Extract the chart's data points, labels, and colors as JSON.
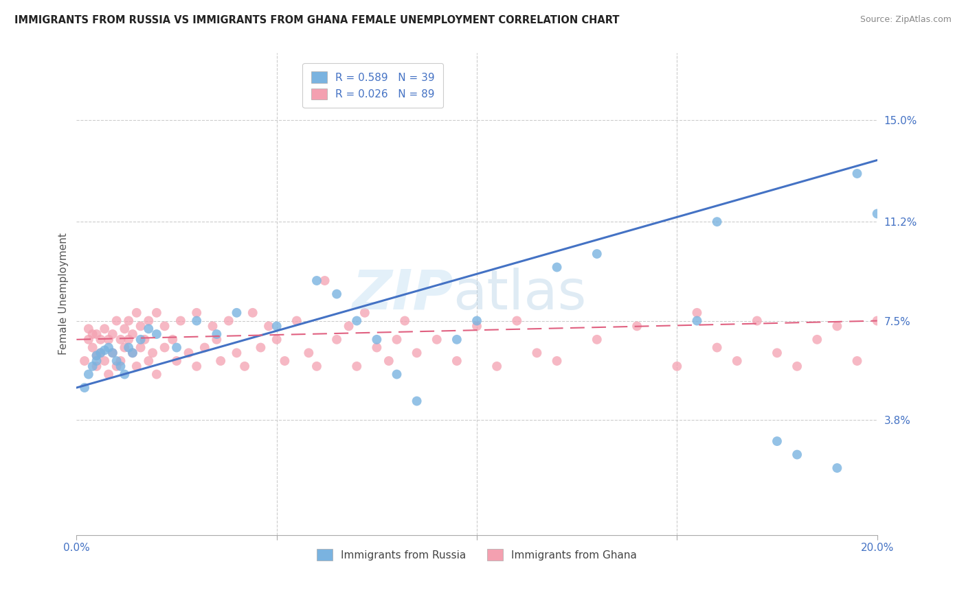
{
  "title": "IMMIGRANTS FROM RUSSIA VS IMMIGRANTS FROM GHANA FEMALE UNEMPLOYMENT CORRELATION CHART",
  "source": "Source: ZipAtlas.com",
  "ylabel": "Female Unemployment",
  "ytick_labels": [
    "15.0%",
    "11.2%",
    "7.5%",
    "3.8%"
  ],
  "ytick_values": [
    0.15,
    0.112,
    0.075,
    0.038
  ],
  "xlim": [
    0.0,
    0.2
  ],
  "ylim": [
    -0.005,
    0.175
  ],
  "legend_r1": "R = 0.589",
  "legend_n1": "N = 39",
  "legend_r2": "R = 0.026",
  "legend_n2": "N = 89",
  "color_russia": "#7ab3e0",
  "color_ghana": "#f4a0b0",
  "color_russia_line": "#4472c4",
  "color_ghana_line": "#e06080",
  "russia_x": [
    0.002,
    0.003,
    0.004,
    0.005,
    0.005,
    0.006,
    0.007,
    0.008,
    0.009,
    0.01,
    0.011,
    0.012,
    0.013,
    0.014,
    0.016,
    0.018,
    0.02,
    0.025,
    0.03,
    0.035,
    0.04,
    0.05,
    0.06,
    0.065,
    0.07,
    0.075,
    0.08,
    0.085,
    0.095,
    0.1,
    0.12,
    0.13,
    0.155,
    0.16,
    0.175,
    0.18,
    0.19,
    0.195,
    0.2
  ],
  "russia_y": [
    0.05,
    0.055,
    0.058,
    0.06,
    0.062,
    0.063,
    0.064,
    0.065,
    0.063,
    0.06,
    0.058,
    0.055,
    0.065,
    0.063,
    0.068,
    0.072,
    0.07,
    0.065,
    0.075,
    0.07,
    0.078,
    0.073,
    0.09,
    0.085,
    0.075,
    0.068,
    0.055,
    0.045,
    0.068,
    0.075,
    0.095,
    0.1,
    0.075,
    0.112,
    0.03,
    0.025,
    0.02,
    0.13,
    0.115
  ],
  "ghana_x": [
    0.002,
    0.003,
    0.003,
    0.004,
    0.004,
    0.005,
    0.005,
    0.005,
    0.006,
    0.006,
    0.007,
    0.007,
    0.008,
    0.008,
    0.009,
    0.009,
    0.01,
    0.01,
    0.011,
    0.011,
    0.012,
    0.012,
    0.013,
    0.013,
    0.014,
    0.014,
    0.015,
    0.015,
    0.016,
    0.016,
    0.017,
    0.018,
    0.018,
    0.019,
    0.02,
    0.02,
    0.022,
    0.022,
    0.024,
    0.025,
    0.026,
    0.028,
    0.03,
    0.03,
    0.032,
    0.034,
    0.035,
    0.036,
    0.038,
    0.04,
    0.042,
    0.044,
    0.046,
    0.048,
    0.05,
    0.052,
    0.055,
    0.058,
    0.06,
    0.062,
    0.065,
    0.068,
    0.07,
    0.072,
    0.075,
    0.078,
    0.08,
    0.082,
    0.085,
    0.09,
    0.095,
    0.1,
    0.105,
    0.11,
    0.115,
    0.12,
    0.13,
    0.14,
    0.15,
    0.155,
    0.16,
    0.165,
    0.17,
    0.175,
    0.18,
    0.185,
    0.19,
    0.195,
    0.2
  ],
  "ghana_y": [
    0.06,
    0.068,
    0.072,
    0.065,
    0.07,
    0.058,
    0.062,
    0.07,
    0.063,
    0.068,
    0.06,
    0.072,
    0.055,
    0.068,
    0.063,
    0.07,
    0.058,
    0.075,
    0.06,
    0.068,
    0.072,
    0.065,
    0.068,
    0.075,
    0.063,
    0.07,
    0.058,
    0.078,
    0.065,
    0.073,
    0.068,
    0.06,
    0.075,
    0.063,
    0.055,
    0.078,
    0.065,
    0.073,
    0.068,
    0.06,
    0.075,
    0.063,
    0.058,
    0.078,
    0.065,
    0.073,
    0.068,
    0.06,
    0.075,
    0.063,
    0.058,
    0.078,
    0.065,
    0.073,
    0.068,
    0.06,
    0.075,
    0.063,
    0.058,
    0.09,
    0.068,
    0.073,
    0.058,
    0.078,
    0.065,
    0.06,
    0.068,
    0.075,
    0.063,
    0.068,
    0.06,
    0.073,
    0.058,
    0.075,
    0.063,
    0.06,
    0.068,
    0.073,
    0.058,
    0.078,
    0.065,
    0.06,
    0.075,
    0.063,
    0.058,
    0.068,
    0.073,
    0.06,
    0.075
  ]
}
